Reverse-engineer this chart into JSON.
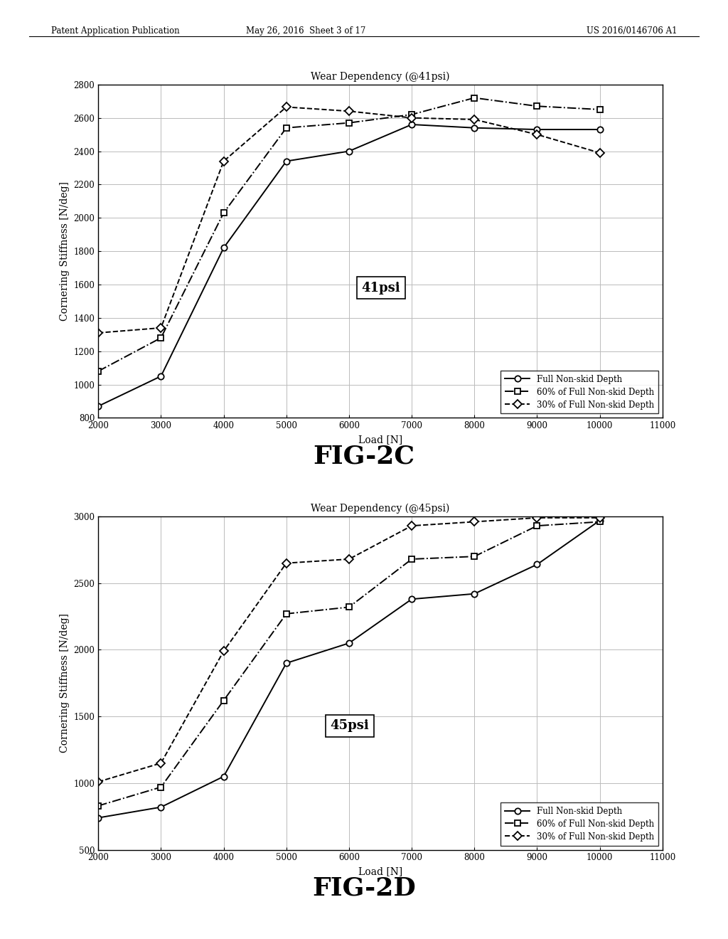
{
  "fig2c": {
    "title": "Wear Dependency (@41psi)",
    "xlabel": "Load [N]",
    "ylabel": "Cornering Stiffness [N/deg]",
    "xlim": [
      2000,
      11000
    ],
    "ylim": [
      800,
      2800
    ],
    "xticks": [
      2000,
      3000,
      4000,
      5000,
      6000,
      7000,
      8000,
      9000,
      10000,
      11000
    ],
    "yticks": [
      800,
      1000,
      1200,
      1400,
      1600,
      1800,
      2000,
      2200,
      2400,
      2600,
      2800
    ],
    "annotation": "41psi",
    "ann_x": 6200,
    "ann_y": 1580,
    "series": [
      {
        "label": "Full Non-skid Depth",
        "x": [
          2000,
          3000,
          4000,
          5000,
          6000,
          7000,
          8000,
          9000,
          10000
        ],
        "y": [
          870,
          1050,
          1820,
          2340,
          2400,
          2560,
          2540,
          2530,
          2530
        ],
        "linestyle": "-",
        "marker": "o"
      },
      {
        "label": "60% of Full Non-skid Depth",
        "x": [
          2000,
          3000,
          4000,
          5000,
          6000,
          7000,
          8000,
          9000,
          10000
        ],
        "y": [
          1080,
          1280,
          2030,
          2540,
          2570,
          2620,
          2720,
          2670,
          2650
        ],
        "linestyle": "-.",
        "marker": "s"
      },
      {
        "label": "30% of Full Non-skid Depth",
        "x": [
          2000,
          3000,
          4000,
          5000,
          6000,
          7000,
          8000,
          9000,
          10000
        ],
        "y": [
          1310,
          1340,
          2340,
          2665,
          2640,
          2600,
          2590,
          2500,
          2390
        ],
        "linestyle": "--",
        "marker": "D"
      }
    ]
  },
  "fig2d": {
    "title": "Wear Dependency (@45psi)",
    "xlabel": "Load [N]",
    "ylabel": "Cornering Stiffness [N/deg]",
    "xlim": [
      2000,
      11000
    ],
    "ylim": [
      500,
      3000
    ],
    "xticks": [
      2000,
      3000,
      4000,
      5000,
      6000,
      7000,
      8000,
      9000,
      10000,
      11000
    ],
    "yticks": [
      500,
      1000,
      1500,
      2000,
      2500,
      3000
    ],
    "annotation": "45psi",
    "ann_x": 5700,
    "ann_y": 1430,
    "series": [
      {
        "label": "Full Non-skid Depth",
        "x": [
          2000,
          3000,
          4000,
          5000,
          6000,
          7000,
          8000,
          9000,
          10000
        ],
        "y": [
          740,
          820,
          1050,
          1900,
          2050,
          2380,
          2420,
          2640,
          2970
        ],
        "linestyle": "-",
        "marker": "o"
      },
      {
        "label": "60% of Full Non-skid Depth",
        "x": [
          2000,
          3000,
          4000,
          5000,
          6000,
          7000,
          8000,
          9000,
          10000
        ],
        "y": [
          830,
          970,
          1620,
          2270,
          2320,
          2680,
          2700,
          2930,
          2960
        ],
        "linestyle": "-.",
        "marker": "s"
      },
      {
        "label": "30% of Full Non-skid Depth",
        "x": [
          2000,
          3000,
          4000,
          5000,
          6000,
          7000,
          8000,
          9000,
          10000
        ],
        "y": [
          1010,
          1150,
          1990,
          2650,
          2680,
          2930,
          2960,
          2990,
          2990
        ],
        "linestyle": "--",
        "marker": "D"
      }
    ]
  },
  "header_left": "Patent Application Publication",
  "header_center": "May 26, 2016  Sheet 3 of 17",
  "header_right": "US 2016/0146706 A1",
  "fig2c_label": "FIG-2C",
  "fig2d_label": "FIG-2D",
  "background_color": "#ffffff",
  "text_color": "#000000",
  "grid_color": "#bbbbbb"
}
